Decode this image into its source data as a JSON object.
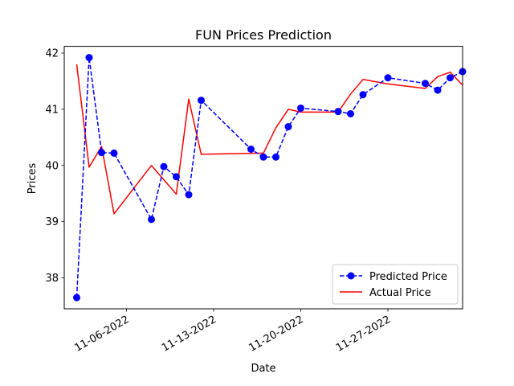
{
  "chart_data": {
    "type": "line",
    "title": "FUN Prices Prediction",
    "xlabel": "Date",
    "ylabel": "Prices",
    "x_ticks": [
      "2022-11-06",
      "2022-11-13",
      "2022-11-20",
      "2022-11-27"
    ],
    "x_tick_labels": [
      "11-06-2022",
      "11-13-2022",
      "11-20-2022",
      "11-27-2022"
    ],
    "xlim": [
      "2022-11-01",
      "2022-12-03"
    ],
    "y_ticks": [
      38,
      39,
      40,
      41,
      42
    ],
    "ylim": [
      37.45,
      42.12
    ],
    "grid": false,
    "legend_position": "lower right",
    "series": [
      {
        "name": "Predicted Price",
        "color": "#0000ff",
        "style": "dashed",
        "marker": "circle",
        "points": [
          {
            "x": "2022-11-02",
            "y": 37.65
          },
          {
            "x": "2022-11-03",
            "y": 41.92
          },
          {
            "x": "2022-11-04",
            "y": 40.23
          },
          {
            "x": "2022-11-05",
            "y": 40.22
          },
          {
            "x": "2022-11-08",
            "y": 39.04
          },
          {
            "x": "2022-11-09",
            "y": 39.98
          },
          {
            "x": "2022-11-10",
            "y": 39.8
          },
          {
            "x": "2022-11-11",
            "y": 39.48
          },
          {
            "x": "2022-11-12",
            "y": 41.16
          },
          {
            "x": "2022-11-16",
            "y": 40.29
          },
          {
            "x": "2022-11-17",
            "y": 40.15
          },
          {
            "x": "2022-11-18",
            "y": 40.15
          },
          {
            "x": "2022-11-19",
            "y": 40.69
          },
          {
            "x": "2022-11-20",
            "y": 41.02
          },
          {
            "x": "2022-11-23",
            "y": 40.96
          },
          {
            "x": "2022-11-24",
            "y": 40.92
          },
          {
            "x": "2022-11-25",
            "y": 41.26
          },
          {
            "x": "2022-11-27",
            "y": 41.56
          },
          {
            "x": "2022-11-30",
            "y": 41.46
          },
          {
            "x": "2022-12-01",
            "y": 41.34
          },
          {
            "x": "2022-12-02",
            "y": 41.56
          },
          {
            "x": "2022-12-03",
            "y": 41.67
          }
        ]
      },
      {
        "name": "Actual Price",
        "color": "#ff0000",
        "style": "solid",
        "marker": "none",
        "points": [
          {
            "x": "2022-11-02",
            "y": 41.8
          },
          {
            "x": "2022-11-03",
            "y": 39.97
          },
          {
            "x": "2022-11-04",
            "y": 40.34
          },
          {
            "x": "2022-11-05",
            "y": 39.14
          },
          {
            "x": "2022-11-08",
            "y": 40.0
          },
          {
            "x": "2022-11-10",
            "y": 39.49
          },
          {
            "x": "2022-11-11",
            "y": 41.18
          },
          {
            "x": "2022-11-12",
            "y": 40.2
          },
          {
            "x": "2022-11-17",
            "y": 40.22
          },
          {
            "x": "2022-11-18",
            "y": 40.67
          },
          {
            "x": "2022-11-19",
            "y": 41.0
          },
          {
            "x": "2022-11-20",
            "y": 40.95
          },
          {
            "x": "2022-11-23",
            "y": 40.95
          },
          {
            "x": "2022-11-24",
            "y": 41.27
          },
          {
            "x": "2022-11-25",
            "y": 41.53
          },
          {
            "x": "2022-11-27",
            "y": 41.45
          },
          {
            "x": "2022-11-30",
            "y": 41.37
          },
          {
            "x": "2022-12-01",
            "y": 41.58
          },
          {
            "x": "2022-12-02",
            "y": 41.66
          },
          {
            "x": "2022-12-03",
            "y": 41.43
          }
        ]
      }
    ]
  }
}
